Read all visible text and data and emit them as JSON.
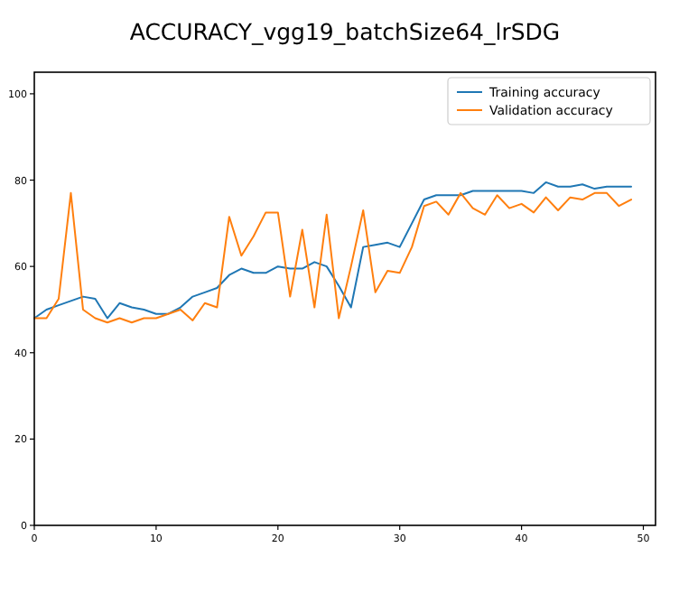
{
  "chart_data": {
    "type": "line",
    "title": "ACCURACY_vgg19_batchSize64_lrSDG",
    "x": [
      0,
      1,
      2,
      3,
      4,
      5,
      6,
      7,
      8,
      9,
      10,
      11,
      12,
      13,
      14,
      15,
      16,
      17,
      18,
      19,
      20,
      21,
      22,
      23,
      24,
      25,
      26,
      27,
      28,
      29,
      30,
      31,
      32,
      33,
      34,
      35,
      36,
      37,
      38,
      39,
      40,
      41,
      42,
      43,
      44,
      45,
      46,
      47,
      48,
      49
    ],
    "series": [
      {
        "name": "Training accuracy",
        "color": "#1f77b4",
        "values": [
          48,
          50,
          51,
          52,
          53,
          52.5,
          48,
          51.5,
          50.5,
          50,
          49,
          49,
          50.5,
          53,
          54,
          55,
          58,
          59.5,
          58.5,
          58.5,
          60,
          59.5,
          59.5,
          61,
          60,
          55.5,
          50.5,
          64.5,
          65,
          65.5,
          64.5,
          70,
          75.5,
          76.5,
          76.5,
          76.5,
          77.5,
          77.5,
          77.5,
          77.5,
          77.5,
          77,
          79.5,
          78.5,
          78.5,
          79,
          78,
          78.5,
          78.5,
          78.5
        ]
      },
      {
        "name": "Validation accuracy",
        "color": "#ff7f0e",
        "values": [
          48,
          48,
          52.5,
          77,
          50,
          48,
          47,
          48,
          47,
          48,
          48,
          49,
          50,
          47.5,
          51.5,
          50.5,
          71.5,
          62.5,
          67,
          72.5,
          72.5,
          53,
          68.5,
          50.5,
          72,
          48,
          60,
          73,
          54,
          59,
          58.5,
          64.5,
          74,
          75,
          72,
          77,
          73.5,
          72,
          76.5,
          73.5,
          74.5,
          72.5,
          76,
          73,
          76,
          75.5,
          77,
          77,
          74,
          75.5
        ]
      }
    ],
    "xlim": [
      0,
      51
    ],
    "xticks": [
      0,
      10,
      20,
      30,
      40,
      50
    ],
    "ylim": [
      0,
      105
    ],
    "yticks": [
      0,
      20,
      40,
      60,
      80,
      100
    ],
    "grid": false,
    "legend": "top right",
    "line_style": "solid",
    "marker": "none"
  }
}
